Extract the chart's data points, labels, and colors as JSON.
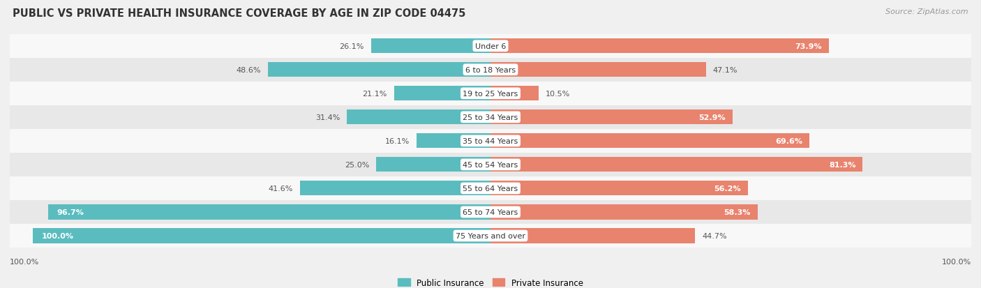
{
  "title": "PUBLIC VS PRIVATE HEALTH INSURANCE COVERAGE BY AGE IN ZIP CODE 04475",
  "source": "Source: ZipAtlas.com",
  "categories": [
    "Under 6",
    "6 to 18 Years",
    "19 to 25 Years",
    "25 to 34 Years",
    "35 to 44 Years",
    "45 to 54 Years",
    "55 to 64 Years",
    "65 to 74 Years",
    "75 Years and over"
  ],
  "public_values": [
    26.1,
    48.6,
    21.1,
    31.4,
    16.1,
    25.0,
    41.6,
    96.7,
    100.0
  ],
  "private_values": [
    73.9,
    47.1,
    10.5,
    52.9,
    69.6,
    81.3,
    56.2,
    58.3,
    44.7
  ],
  "public_color": "#5bbcbf",
  "private_color": "#e8836e",
  "bg_color": "#f0f0f0",
  "row_bg_light": "#f8f8f8",
  "row_bg_dark": "#e8e8e8",
  "bar_height": 0.62,
  "max_value": 100.0,
  "x_axis_left": "100.0%",
  "x_axis_right": "100.0%",
  "label_inside_color": "#ffffff",
  "label_outside_color": "#555555",
  "label_fontsize": 8.0,
  "category_fontsize": 8.0
}
